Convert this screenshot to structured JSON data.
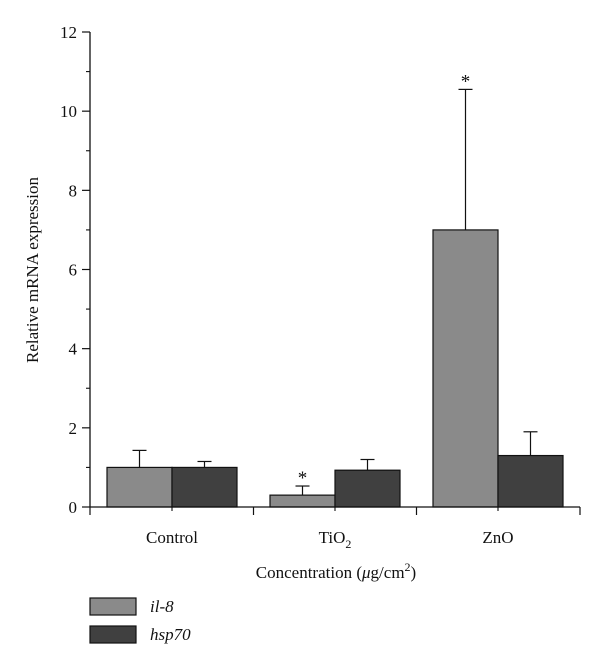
{
  "chart_data": {
    "type": "bar",
    "categories": [
      "Control",
      "TiO2",
      "ZnO"
    ],
    "category_labels": [
      {
        "base": "Control",
        "sub": "",
        "sup": ""
      },
      {
        "base": "TiO",
        "sub": "2",
        "sup": ""
      },
      {
        "base": "ZnO",
        "sub": "",
        "sup": ""
      }
    ],
    "series": [
      {
        "name": "il-8",
        "color": "#8a8a8a",
        "values": [
          1.0,
          0.3,
          7.0
        ],
        "error": [
          0.43,
          0.23,
          3.55
        ],
        "significant": [
          false,
          true,
          true
        ]
      },
      {
        "name": "hsp70",
        "color": "#404040",
        "values": [
          1.0,
          0.93,
          1.3
        ],
        "error": [
          0.15,
          0.27,
          0.6
        ],
        "significant": [
          false,
          false,
          false
        ]
      }
    ],
    "ylabel": "Relative mRNA expression",
    "xlabel": {
      "pre": "Concentration (",
      "mu": "μ",
      "mid": "g/cm",
      "sup": "2",
      "post": ")"
    },
    "ylim": [
      0,
      12
    ],
    "yticks": [
      0,
      2,
      4,
      6,
      8,
      10,
      12
    ],
    "significance_marker": "*",
    "legend_position": "bottom-left",
    "grid": false
  }
}
